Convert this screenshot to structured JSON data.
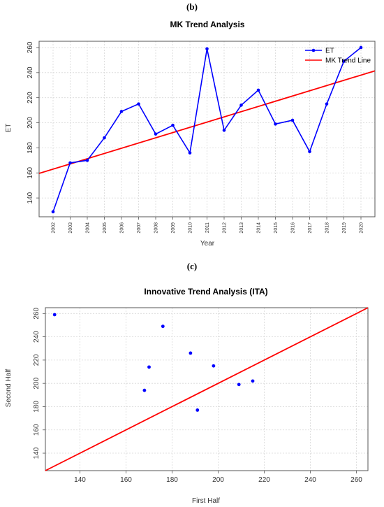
{
  "chart_data": [
    {
      "panel_label": "(b)",
      "type": "line",
      "title": "MK Trend Analysis",
      "xlabel": "Year",
      "ylabel": "ET",
      "x": [
        "2002",
        "2003",
        "2004",
        "2005",
        "2006",
        "2007",
        "2008",
        "2009",
        "2010",
        "2011",
        "2012",
        "2013",
        "2014",
        "2015",
        "2016",
        "2017",
        "2018",
        "2019",
        "2020"
      ],
      "series": [
        {
          "name": "ET",
          "color": "#0000ff",
          "values": [
            129,
            168,
            170,
            188,
            209,
            215,
            191,
            198,
            176,
            259,
            194,
            214,
            226,
            199,
            202,
            177,
            215,
            249,
            260
          ]
        },
        {
          "name": "MK Trend Line",
          "color": "#ff0000",
          "line": {
            "y_start": 163,
            "y_end": 238
          }
        }
      ],
      "ylim": [
        125,
        265
      ],
      "yticks": [
        140,
        160,
        180,
        200,
        220,
        240,
        260
      ],
      "grid": true,
      "legend": "top-right"
    },
    {
      "panel_label": "(c)",
      "type": "scatter",
      "title": "Innovative Trend Analysis (ITA)",
      "xlabel": "First Half",
      "ylabel": "Second Half",
      "points": [
        {
          "x": 129,
          "y": 259
        },
        {
          "x": 168,
          "y": 194
        },
        {
          "x": 170,
          "y": 214
        },
        {
          "x": 176,
          "y": 249
        },
        {
          "x": 188,
          "y": 226
        },
        {
          "x": 191,
          "y": 177
        },
        {
          "x": 198,
          "y": 215
        },
        {
          "x": 209,
          "y": 199
        },
        {
          "x": 215,
          "y": 202
        }
      ],
      "point_color": "#0000ff",
      "reference_line": {
        "type": "1:1",
        "color": "#ff0000"
      },
      "xlim": [
        125,
        265
      ],
      "ylim": [
        125,
        265
      ],
      "xticks": [
        140,
        160,
        180,
        200,
        220,
        240,
        260
      ],
      "yticks": [
        140,
        160,
        180,
        200,
        220,
        240,
        260
      ],
      "grid": true
    }
  ]
}
